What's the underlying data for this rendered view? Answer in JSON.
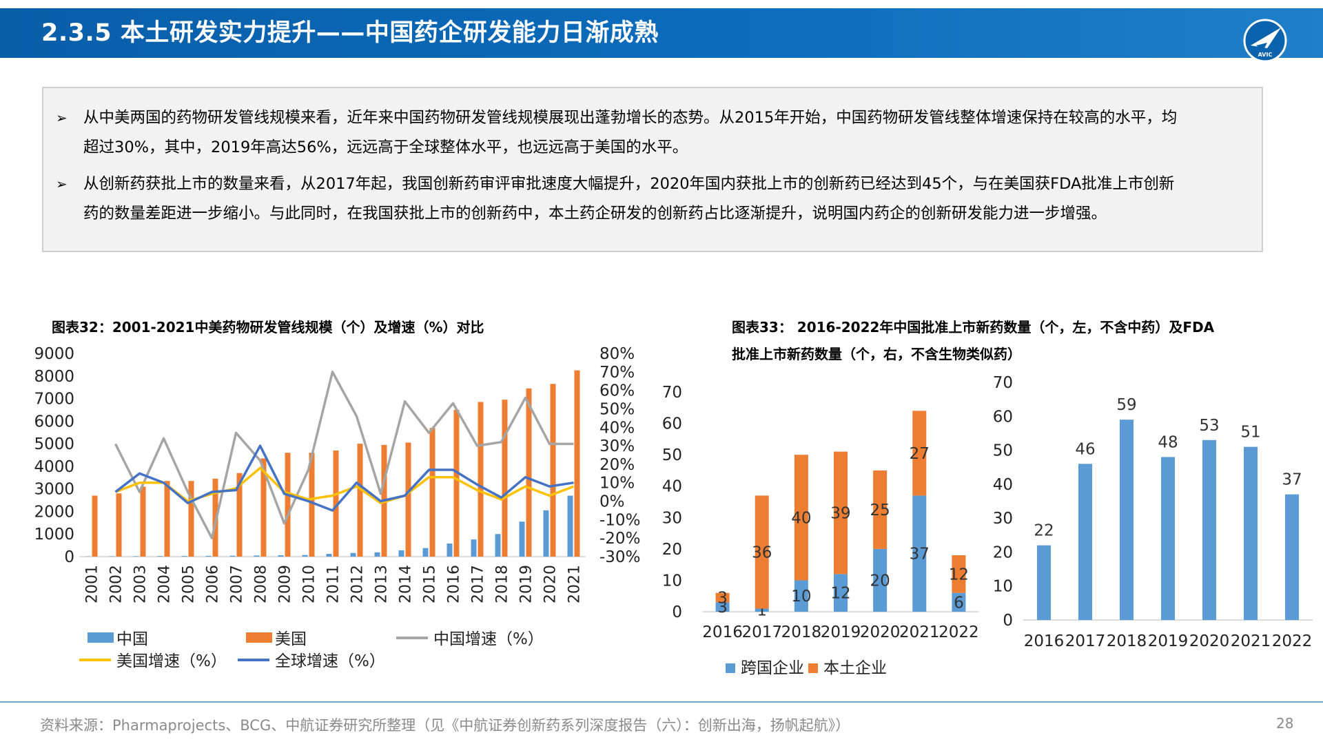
{
  "header": {
    "title": "2.3.5 本土研发实力提升——中国药企研发能力日渐成熟",
    "logo_text": "AVIC"
  },
  "summary": {
    "bullets": [
      {
        "line1": "从中美两国的药物研发管线规模来看，近年来中国药物研发管线规模展现出蓬勃增长的态势。从2015年开始，中国药物研发管线整体增速保持在较高的水平，均",
        "line2": "超过30%，其中，2019年高达56%，远远高于全球整体水平，也远远高于美国的水平。"
      },
      {
        "line1": "从创新药获批上市的数量来看，从2017年起，我国创新药审评审批速度大幅提升，2020年国内获批上市的创新药已经达到45个，与在美国获FDA批准上市创新",
        "line2": "药的数量差距进一步缩小。与此同时，在我国获批上市的创新药中，本土药企研发的创新药占比逐渐提升，说明国内药企的创新研发能力进一步增强。"
      }
    ]
  },
  "chart32_title": "图表32：2001-2021中美药物研发管线规模（个）及增速（%）对比",
  "chart33_title_line1": "图表33：  2016-2022年中国批准上市新药数量（个，左，不含中药）及FDA",
  "chart33_title_line2": "批准上市新药数量（个，右，不含生物类似药）",
  "chart_data": [
    {
      "type": "bar",
      "title": "2001-2021中美药物研发管线规模（个）及增速（%）对比",
      "categories": [
        "2001",
        "2002",
        "2003",
        "2004",
        "2005",
        "2006",
        "2007",
        "2008",
        "2009",
        "2010",
        "2011",
        "2012",
        "2013",
        "2014",
        "2015",
        "2016",
        "2017",
        "2018",
        "2019",
        "2020",
        "2021"
      ],
      "y_left_ticks": [
        "9000",
        "8000",
        "7000",
        "6000",
        "5000",
        "4000",
        "3000",
        "2000",
        "1000",
        "0"
      ],
      "y_right_ticks": [
        "80%",
        "70%",
        "60%",
        "50%",
        "40%",
        "30%",
        "20%",
        "10%",
        "0%",
        "-10%",
        "-20%",
        "-30%"
      ],
      "ylim_left": [
        0,
        9000
      ],
      "ylim_right": [
        -30,
        80
      ],
      "bar_series": [
        {
          "name": "中国",
          "color": "#5b9bd5",
          "values": [
            10,
            15,
            20,
            25,
            30,
            35,
            40,
            50,
            60,
            70,
            120,
            160,
            190,
            280,
            380,
            580,
            760,
            1000,
            1550,
            2050,
            2700
          ]
        },
        {
          "name": "美国",
          "color": "#ed7d31",
          "values": [
            2700,
            2800,
            3100,
            3350,
            3350,
            3450,
            3700,
            4350,
            4600,
            4600,
            4700,
            5000,
            4950,
            5050,
            5700,
            6500,
            6850,
            6950,
            7450,
            7650,
            8250
          ]
        }
      ],
      "line_series": [
        {
          "name": "中国增速（%）",
          "color": "#a5a5a5",
          "values": [
            null,
            31,
            5,
            34,
            5,
            -20,
            37,
            22,
            -12,
            17,
            70,
            46,
            4,
            54,
            37,
            53,
            30,
            32,
            56,
            31,
            31
          ]
        },
        {
          "name": "美国增速（%）",
          "color": "#ffc000",
          "values": [
            null,
            5,
            10,
            10,
            0,
            4,
            7,
            18,
            5,
            1,
            3,
            8,
            -1,
            3,
            13,
            13,
            6,
            1,
            8,
            3,
            8
          ]
        },
        {
          "name": "全球增速（%）",
          "color": "#4472c4",
          "values": [
            null,
            5,
            15,
            10,
            -1,
            5,
            6,
            30,
            4,
            0,
            -5,
            10,
            0,
            3,
            17,
            17,
            9,
            2,
            13,
            8,
            10
          ]
        }
      ]
    },
    {
      "type": "bar",
      "title": "2016-2022年中国批准上市新药数量（个，左，不含中药）",
      "categories": [
        "2016",
        "2017",
        "2018",
        "2019",
        "2020",
        "2021",
        "2022"
      ],
      "y_ticks": [
        "70",
        "60",
        "50",
        "40",
        "30",
        "20",
        "10",
        "0"
      ],
      "ylim": [
        0,
        70
      ],
      "stacked": true,
      "series": [
        {
          "name": "跨国企业",
          "color": "#5b9bd5",
          "values": [
            3,
            1,
            10,
            12,
            20,
            37,
            6
          ]
        },
        {
          "name": "本土企业",
          "color": "#ed7d31",
          "values": [
            3,
            36,
            40,
            39,
            25,
            27,
            12
          ]
        }
      ]
    },
    {
      "type": "bar",
      "title": "FDA批准上市新药数量（个，右，不含生物类似药）",
      "categories": [
        "2016",
        "2017",
        "2018",
        "2019",
        "2020",
        "2021",
        "2022"
      ],
      "y_ticks": [
        "70",
        "60",
        "50",
        "40",
        "30",
        "20",
        "10",
        "0"
      ],
      "ylim": [
        0,
        70
      ],
      "series": [
        {
          "color": "#5b9bd5",
          "values": [
            22,
            46,
            59,
            48,
            53,
            51,
            37
          ]
        }
      ]
    }
  ],
  "footer": {
    "source": "资料来源：Pharmaprojects、BCG、中航证券研究所整理（见《中航证券创新药系列深度报告（六）：创新出海，扬帆起航》）",
    "page": "28"
  }
}
